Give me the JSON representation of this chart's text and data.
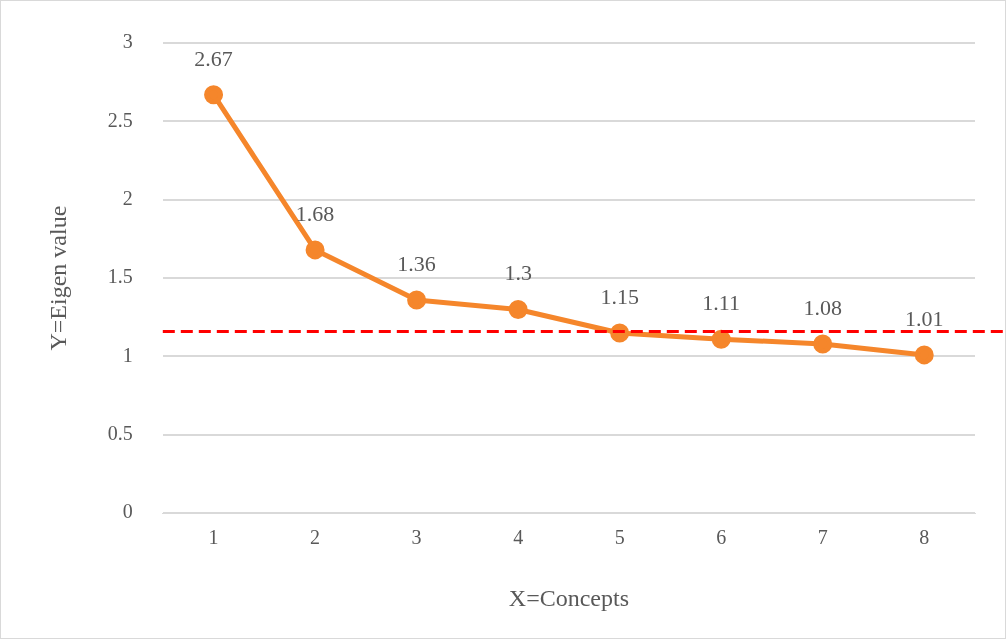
{
  "chart_data": {
    "type": "line",
    "xlabel": "X=Concepts",
    "ylabel": "Y=Eigen value",
    "categories": [
      "1",
      "2",
      "3",
      "4",
      "5",
      "6",
      "7",
      "8"
    ],
    "series": [
      {
        "color": "#f5862b",
        "values": [
          2.67,
          1.68,
          1.36,
          1.3,
          1.15,
          1.11,
          1.08,
          1.01
        ]
      }
    ],
    "ylim": [
      0,
      3
    ],
    "yticks": [
      0,
      0.5,
      1,
      1.5,
      2,
      2.5,
      3
    ],
    "grid": "y",
    "marker": "circle",
    "line_style": "solid",
    "data_labels": true,
    "ref_lines": [
      {
        "axis": "y",
        "value": 1.16,
        "color": "#ff0000",
        "line_style": "dashed"
      }
    ]
  }
}
